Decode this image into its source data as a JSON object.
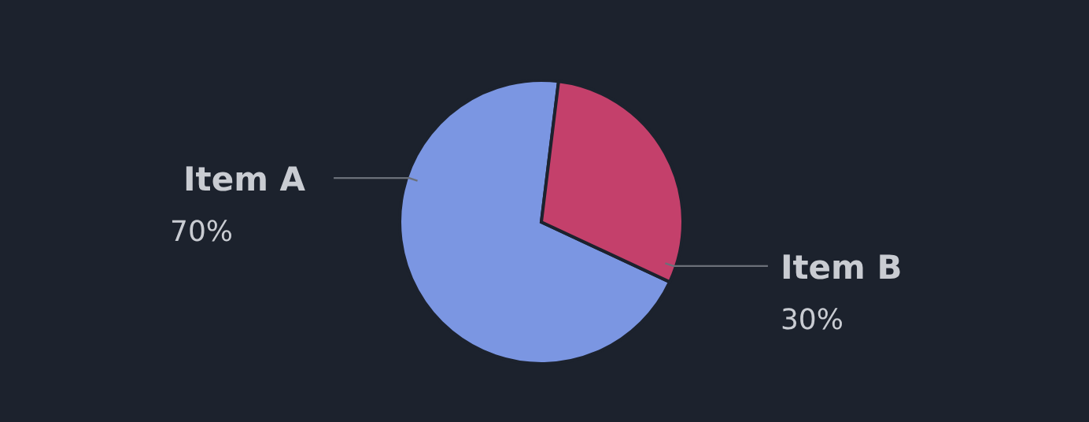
{
  "chart_data": {
    "type": "pie",
    "categories": [
      "Item A",
      "Item B"
    ],
    "values": [
      70,
      30
    ],
    "colors": [
      "#7b96e2",
      "#c4406b"
    ],
    "value_labels": [
      "70%",
      "30%"
    ]
  }
}
